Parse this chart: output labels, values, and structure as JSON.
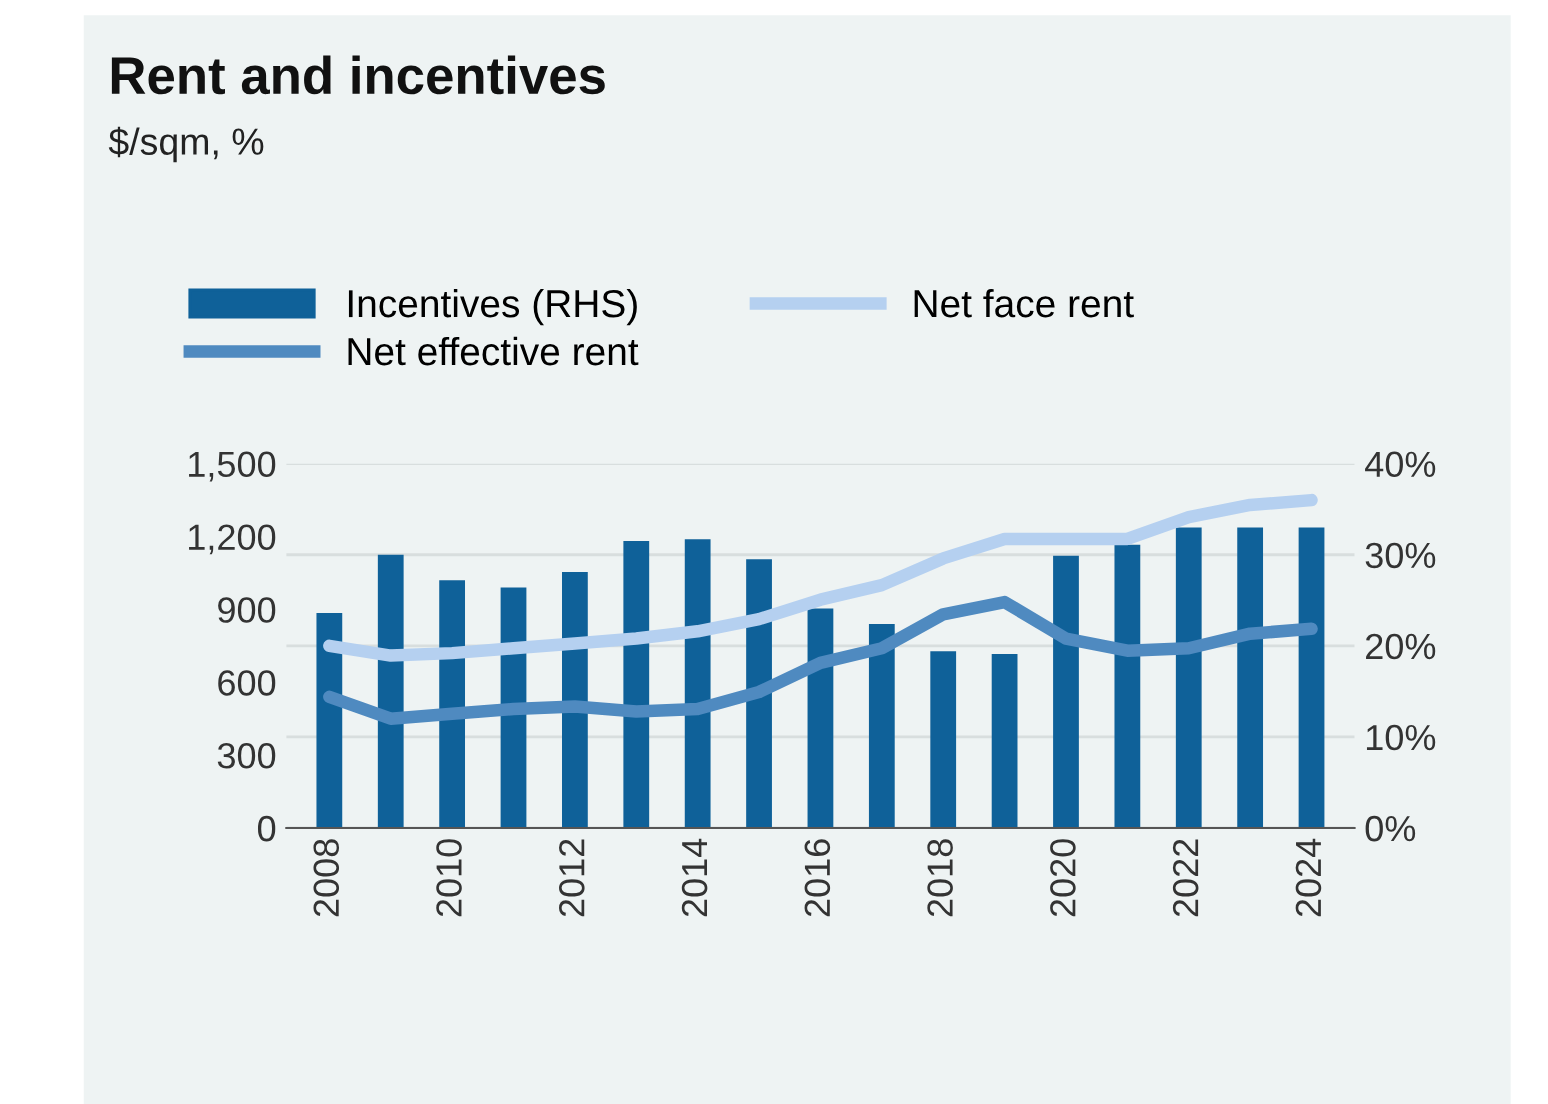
{
  "chart_data": {
    "type": "bar",
    "title": "Rent and incentives",
    "subtitle": "$/sqm, %",
    "categories": [
      "2008",
      null,
      "2010",
      null,
      "2012",
      null,
      "2014",
      null,
      "2016",
      null,
      "2018",
      null,
      "2020",
      null,
      "2022",
      null,
      "2024"
    ],
    "series": [
      {
        "name": "Incentives (RHS)",
        "axis": "y2",
        "color": "#0f6199",
        "values": [
          23.6,
          30,
          27.2,
          26.4,
          28.1,
          31.5,
          31.7,
          29.5,
          24.1,
          22.4,
          19.4,
          19.1,
          29.9,
          31.1,
          33,
          33,
          33
        ]
      },
      {
        "name": "Net face rent",
        "type": "line",
        "color": "#b5d0f0",
        "values": [
          750,
          710,
          720,
          740,
          760,
          780,
          810,
          860,
          940,
          1000,
          1110,
          1190,
          1190,
          1190,
          1280,
          1330,
          1350
        ]
      },
      {
        "name": "Net effective rent",
        "type": "line",
        "color": "#4f8ac0",
        "values": [
          540,
          450,
          470,
          490,
          500,
          480,
          490,
          560,
          680,
          740,
          880,
          930,
          780,
          730,
          740,
          800,
          820
        ]
      }
    ],
    "ylim": [
      0,
      1500
    ],
    "yticks": [
      {
        "value": 0,
        "label": "0"
      },
      {
        "value": 300,
        "label": "300"
      },
      {
        "value": 600,
        "label": "600"
      },
      {
        "value": 900,
        "label": "900"
      },
      {
        "value": 1200,
        "label": "1,200"
      },
      {
        "value": 1500,
        "label": "1,500"
      }
    ],
    "y2lim": [
      0,
      40
    ],
    "y2ticks": [
      {
        "value": 0,
        "label": "0%"
      },
      {
        "value": 10,
        "label": "10%"
      },
      {
        "value": 20,
        "label": "20%"
      },
      {
        "value": 30,
        "label": "30%"
      },
      {
        "value": 40,
        "label": "40%"
      }
    ],
    "grid": "y",
    "legend": "top left"
  }
}
